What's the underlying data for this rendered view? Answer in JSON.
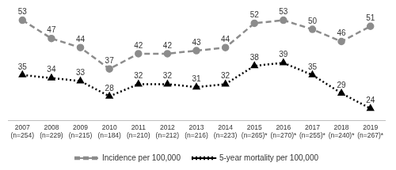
{
  "chart_data": {
    "type": "line",
    "categories": [
      [
        "2007",
        "(n=254)"
      ],
      [
        "2008",
        "(n=229)"
      ],
      [
        "2009",
        "(n=215)"
      ],
      [
        "2010",
        "(n=184)"
      ],
      [
        "2011",
        "(n=210)"
      ],
      [
        "2012",
        "(n=212)"
      ],
      [
        "2013",
        "(n=216)"
      ],
      [
        "2014",
        "(n=223)"
      ],
      [
        "2015",
        "(n=265)*"
      ],
      [
        "2016",
        "(n=270)*"
      ],
      [
        "2017",
        "(n=255)*"
      ],
      [
        "2018",
        "(n=240)*"
      ],
      [
        "2019",
        "(n=267)*"
      ]
    ],
    "series": [
      {
        "name": "Incidence per 100,000",
        "color": "#8c8c8c",
        "marker": "circle",
        "line_style": "dashed",
        "values": [
          53,
          47,
          44,
          37,
          42,
          42,
          43,
          44,
          52,
          53,
          50,
          46,
          51
        ]
      },
      {
        "name": "5-year mortality per 100,000",
        "color": "#000000",
        "marker": "triangle",
        "line_style": "dotted",
        "values": [
          35,
          34,
          33,
          28,
          32,
          32,
          31,
          32,
          38,
          39,
          35,
          29,
          24
        ]
      }
    ],
    "ylim": [
      20,
      56
    ],
    "grid": false,
    "legend": "bottom",
    "data_labels": true,
    "tick_labels": "x"
  }
}
